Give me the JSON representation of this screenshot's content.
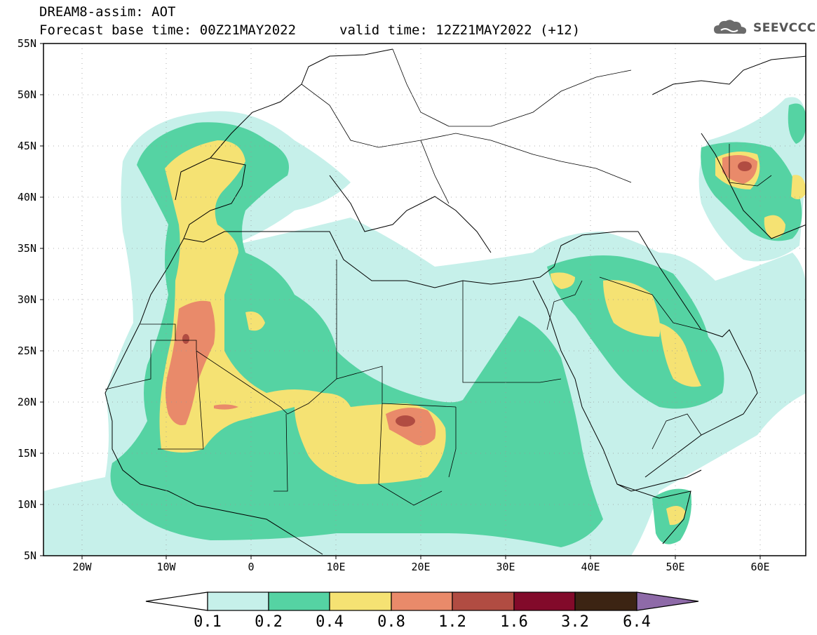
{
  "header": {
    "title": "DREAM8-assim: AOT",
    "base_time": "Forecast base time: 00Z21MAY2022",
    "valid_time": "valid time: 12Z21MAY2022 (+12)",
    "logo_text": "SEEVCCC"
  },
  "map": {
    "lon_range": [
      -25,
      65
    ],
    "lat_range": [
      5,
      55
    ],
    "lat_labels": [
      "55N",
      "50N",
      "45N",
      "40N",
      "35N",
      "30N",
      "25N",
      "20N",
      "15N",
      "10N",
      "5N"
    ],
    "lon_labels": [
      "20W",
      "10W",
      "0",
      "10E",
      "20E",
      "30E",
      "40E",
      "50E",
      "60E"
    ],
    "lat_values": [
      55,
      50,
      45,
      40,
      35,
      30,
      25,
      20,
      15,
      10,
      5
    ],
    "lon_values": [
      -20,
      -10,
      0,
      10,
      20,
      30,
      40,
      50,
      60
    ],
    "grid": "dotted"
  },
  "colorbar": {
    "labels": [
      "0.1",
      "0.2",
      "0.4",
      "0.8",
      "1.2",
      "1.6",
      "3.2",
      "6.4"
    ],
    "colors": [
      "#ffffff",
      "#c6f0ea",
      "#55d3a3",
      "#f5e273",
      "#e98a6a",
      "#b14c42",
      "#820a2a",
      "#3c2413",
      "#8e6aa8"
    ]
  },
  "colors": {
    "level1": "#c6f0ea",
    "level2": "#55d3a3",
    "level3": "#f5e273",
    "level4": "#e98a6a",
    "level5": "#b14c42",
    "level6": "#820a2a"
  }
}
